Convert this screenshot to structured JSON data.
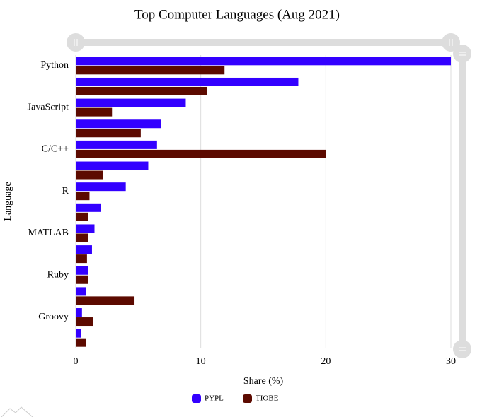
{
  "chart_data": {
    "type": "bar",
    "orientation": "horizontal",
    "title": "Top Computer Languages (Aug 2021)",
    "x_label": "Share (%)",
    "y_label": "Language",
    "categories": [
      "Python",
      null,
      "JavaScript",
      null,
      "C/C++",
      null,
      "R",
      null,
      "MATLAB",
      null,
      "Ruby",
      null,
      "Groovy",
      null
    ],
    "series": [
      {
        "name": "PYPL",
        "color": "#3300ff",
        "values": [
          30,
          17.8,
          8.8,
          6.8,
          6.5,
          5.8,
          4.0,
          2.0,
          1.5,
          1.3,
          1.0,
          0.8,
          0.5,
          0.4
        ]
      },
      {
        "name": "TIOBE",
        "color": "#5c0a00",
        "values": [
          11.9,
          10.5,
          2.9,
          5.2,
          20.0,
          2.2,
          1.1,
          1.0,
          1.0,
          0.9,
          1.0,
          4.7,
          1.4,
          0.8
        ]
      }
    ],
    "xlim": [
      0,
      30
    ],
    "xticks": [
      0,
      10,
      20,
      30
    ],
    "grid": true,
    "legend": "bottom"
  }
}
